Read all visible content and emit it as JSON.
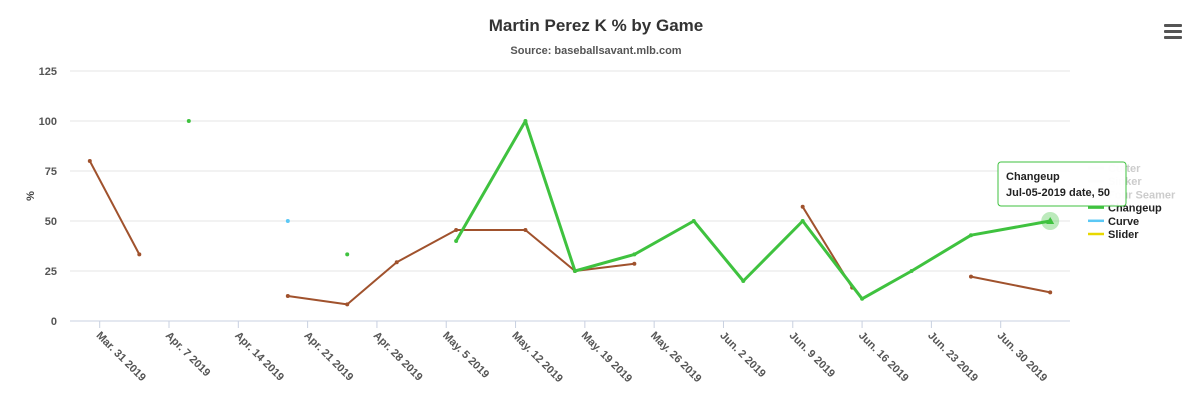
{
  "menu_icon": "hamburger-menu-icon",
  "chart_data": {
    "type": "line",
    "title": "Martin Perez K % by Game",
    "subtitle": "Source: baseballsavant.mlb.com",
    "ylabel": "%",
    "ylim": [
      0,
      125
    ],
    "yticks": [
      0,
      25,
      50,
      75,
      100,
      125
    ],
    "xlim": [
      "2019-03-28",
      "2019-07-07"
    ],
    "xticks": [
      {
        "date": "2019-03-31",
        "label": "Mar. 31 2019"
      },
      {
        "date": "2019-04-07",
        "label": "Apr. 7 2019"
      },
      {
        "date": "2019-04-14",
        "label": "Apr. 14 2019"
      },
      {
        "date": "2019-04-21",
        "label": "Apr. 21 2019"
      },
      {
        "date": "2019-04-28",
        "label": "Apr. 28 2019"
      },
      {
        "date": "2019-05-05",
        "label": "May. 5 2019"
      },
      {
        "date": "2019-05-12",
        "label": "May. 12 2019"
      },
      {
        "date": "2019-05-19",
        "label": "May. 19 2019"
      },
      {
        "date": "2019-05-26",
        "label": "May. 26 2019"
      },
      {
        "date": "2019-06-02",
        "label": "Jun. 2 2019"
      },
      {
        "date": "2019-06-09",
        "label": "Jun. 9 2019"
      },
      {
        "date": "2019-06-16",
        "label": "Jun. 16 2019"
      },
      {
        "date": "2019-06-23",
        "label": "Jun. 23 2019"
      },
      {
        "date": "2019-06-30",
        "label": "Jun. 30 2019"
      }
    ],
    "grid": true,
    "legend_position": "right",
    "series": [
      {
        "name": "Cutter",
        "color": "#a0522d",
        "segments": [
          [
            {
              "x": "2019-03-30",
              "y": 80
            },
            {
              "x": "2019-04-04",
              "y": 33.3
            }
          ],
          [
            {
              "x": "2019-04-19",
              "y": 12.5
            },
            {
              "x": "2019-04-25",
              "y": 8.3
            },
            {
              "x": "2019-04-30",
              "y": 29.4
            },
            {
              "x": "2019-05-06",
              "y": 45.5
            },
            {
              "x": "2019-05-13",
              "y": 45.5
            },
            {
              "x": "2019-05-18",
              "y": 25
            },
            {
              "x": "2019-05-24",
              "y": 28.6
            }
          ],
          [
            {
              "x": "2019-06-10",
              "y": 57.1
            },
            {
              "x": "2019-06-15",
              "y": 16.7
            }
          ],
          [
            {
              "x": "2019-06-27",
              "y": 22.2
            },
            {
              "x": "2019-07-05",
              "y": 14.3
            }
          ]
        ]
      },
      {
        "name": "Four Seamer",
        "color": "#c8c8c8",
        "segments": []
      },
      {
        "name": "Changeup",
        "color": "#3fc23f",
        "segments": [
          [
            {
              "x": "2019-04-09",
              "y": 100
            }
          ],
          [
            {
              "x": "2019-04-25",
              "y": 33.3
            }
          ],
          [
            {
              "x": "2019-05-06",
              "y": 40
            },
            {
              "x": "2019-05-13",
              "y": 100
            },
            {
              "x": "2019-05-18",
              "y": 25
            },
            {
              "x": "2019-05-24",
              "y": 33.3
            },
            {
              "x": "2019-05-30",
              "y": 50
            },
            {
              "x": "2019-06-04",
              "y": 20
            },
            {
              "x": "2019-06-10",
              "y": 50
            },
            {
              "x": "2019-06-16",
              "y": 11.1
            },
            {
              "x": "2019-06-21",
              "y": 25
            },
            {
              "x": "2019-06-27",
              "y": 42.9
            },
            {
              "x": "2019-07-05",
              "y": 50
            }
          ]
        ]
      },
      {
        "name": "Curve",
        "color": "#5bc8f5",
        "segments": [
          [
            {
              "x": "2019-04-19",
              "y": 50
            }
          ]
        ]
      },
      {
        "name": "Slider",
        "color": "#e8d800",
        "segments": []
      }
    ],
    "legend": [
      {
        "name": "Cutter",
        "color": "#cccccc",
        "hidden": true
      },
      {
        "name": "Sinker",
        "color": "#cccccc",
        "hidden": true
      },
      {
        "name": "Four Seamer",
        "color": "#cccccc",
        "hidden": true
      },
      {
        "name": "Changeup",
        "color": "#3fc23f",
        "hidden": false
      },
      {
        "name": "Curve",
        "color": "#5bc8f5",
        "hidden": false
      },
      {
        "name": "Slider",
        "color": "#e8d800",
        "hidden": false
      }
    ],
    "tooltip": {
      "series": "Changeup",
      "line1": "Changeup",
      "line2": "Jul-05-2019 date, 50",
      "x": "2019-07-05",
      "y": 50
    }
  }
}
